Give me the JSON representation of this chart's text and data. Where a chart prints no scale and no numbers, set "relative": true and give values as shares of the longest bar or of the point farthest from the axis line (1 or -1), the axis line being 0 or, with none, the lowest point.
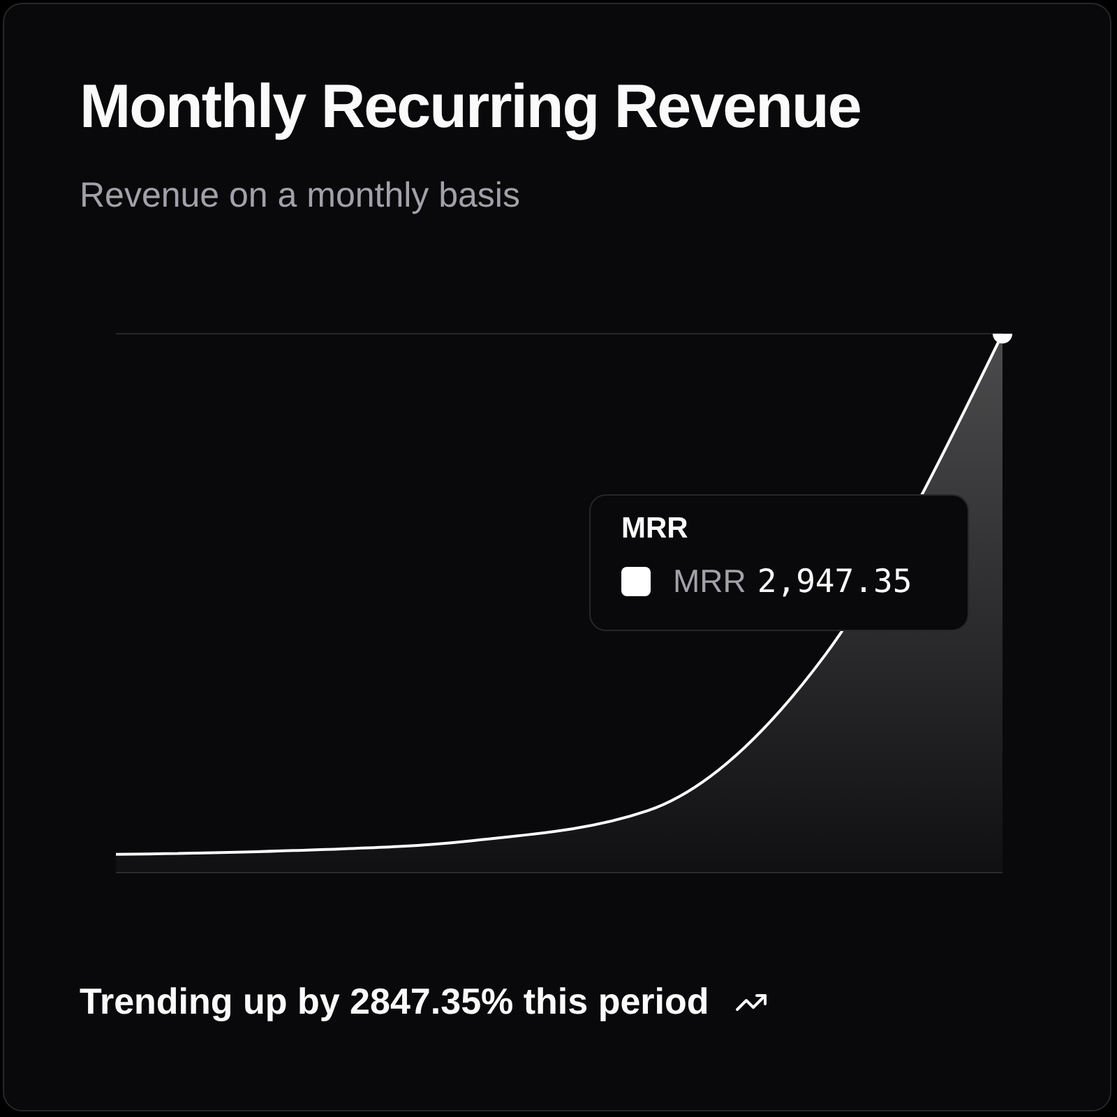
{
  "chart_data": {
    "type": "area",
    "title": "Monthly Recurring Revenue",
    "subtitle": "Revenue on a monthly basis",
    "categories": [
      null,
      null,
      null,
      null,
      null,
      null
    ],
    "series": [
      {
        "name": "MRR",
        "color": "#ffffff",
        "values": [
          0.034,
          0.041,
          0.059,
          0.115,
          0.404,
          1
        ]
      }
    ],
    "relative": true,
    "grid": "y",
    "tick_labels": false,
    "annotations": [
      "MRR",
      "2,947.35",
      "Trending up by 2847.35% this period"
    ]
  }
}
